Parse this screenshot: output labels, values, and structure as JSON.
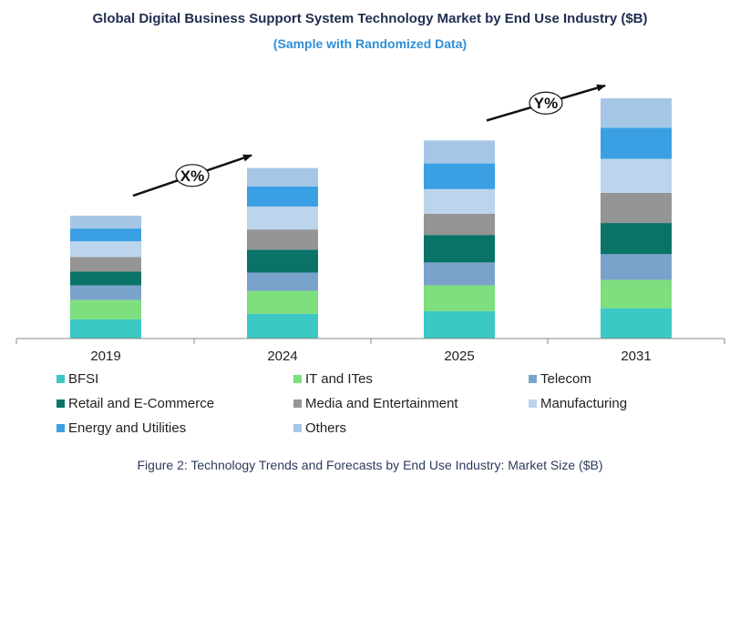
{
  "chart_data": {
    "type": "bar",
    "stacked": true,
    "title": "Global Digital Business Support System Technology Market by End Use Industry ($B)",
    "subtitle": "(Sample with Randomized Data)",
    "categories": [
      "2019",
      "2024",
      "2025",
      "2031"
    ],
    "series": [
      {
        "name": "BFSI",
        "color": "#3cc8c4",
        "values": [
          21,
          27,
          30,
          33
        ]
      },
      {
        "name": "IT and ITes",
        "color": "#7ddf7d",
        "values": [
          21,
          25,
          28,
          31
        ]
      },
      {
        "name": "Telecom",
        "color": "#7aa3cc",
        "values": [
          16,
          20,
          25,
          28
        ]
      },
      {
        "name": "Retail and E-Commerce",
        "color": "#0a7368",
        "values": [
          15,
          25,
          30,
          34
        ]
      },
      {
        "name": "Media and Entertainment",
        "color": "#959595",
        "values": [
          16,
          22,
          23,
          33
        ]
      },
      {
        "name": "Manufacturing",
        "color": "#bcd4ec",
        "values": [
          17,
          25,
          27,
          37
        ]
      },
      {
        "name": "Energy and Utilities",
        "color": "#3aa0e3",
        "values": [
          14,
          22,
          28,
          34
        ]
      },
      {
        "name": "Others",
        "color": "#a6c6e6",
        "values": [
          14,
          20,
          25,
          32
        ]
      }
    ],
    "ylim": [
      0,
      270
    ],
    "xlabel": "",
    "ylabel": "",
    "legend_position": "bottom",
    "annotations": [
      {
        "label": "X%",
        "from": "2019",
        "to": "2024"
      },
      {
        "label": "Y%",
        "from": "2025",
        "to": "2031"
      }
    ]
  },
  "caption": "Figure 2: Technology Trends and Forecasts by End Use Industry:  Market Size ($B)"
}
